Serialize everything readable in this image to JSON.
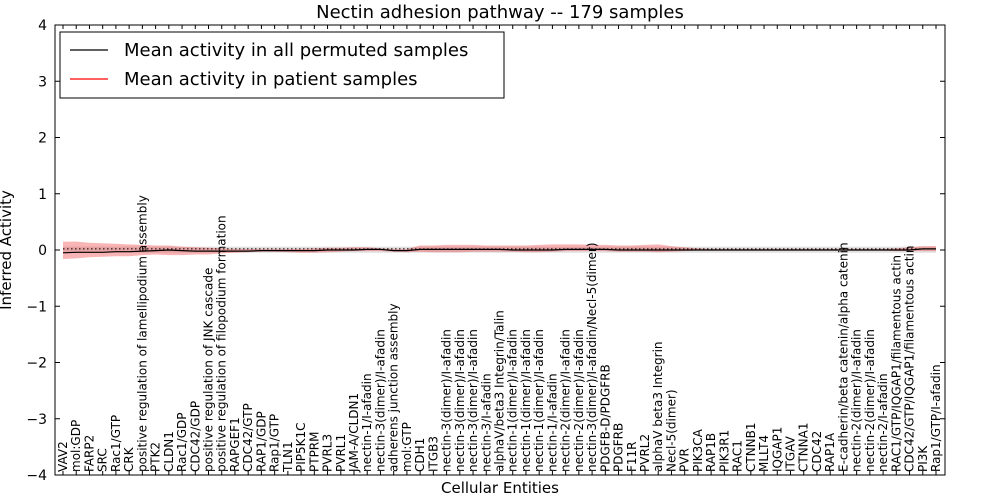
{
  "chart_data": {
    "type": "line",
    "title": "Nectin adhesion pathway -- 179 samples",
    "xlabel": "Cellular Entities",
    "ylabel": "Inferred Activity",
    "ylim": [
      -4,
      4
    ],
    "yticks": [
      "4",
      "3",
      "2",
      "1",
      "0",
      "−1",
      "−2",
      "−3",
      "−4"
    ],
    "ytick_values": [
      4,
      3,
      2,
      1,
      0,
      -1,
      -2,
      -3,
      -4
    ],
    "legend_position": "top-left",
    "categories": [
      "VAV2",
      "mol:GDP",
      "FARP2",
      "SRC",
      "Rac1/GTP",
      "CRK",
      "positive regulation of lamellipodium assembly",
      "PTK2",
      "CLDN1",
      "Rac1/GDP",
      "CDC42/GDP",
      "positive regulation of JNK cascade",
      "positive regulation of filopodium formation",
      "RAPGEF1",
      "CDC42/GTP",
      "RAP1/GDP",
      "Rap1/GTP",
      "TLN1",
      "PIP5K1C",
      "PTPRM",
      "PVRL3",
      "PVRL1",
      "JAM-A/CLDN1",
      "nectin-1/I-afadin",
      "nectin-3(dimer)/I-afadin",
      "adherens junction assembly",
      "mol:GTP",
      "CDH1",
      "ITGB3",
      "nectin-3(dimer)/I-afadin",
      "nectin-3(dimer)/I-afadin",
      "nectin-3(dimer)/I-afadin",
      "nectin-3/I-afadin",
      "alphaV/beta3 Integrin/Talin",
      "nectin-1(dimer)/I-afadin",
      "nectin-1(dimer)/I-afadin",
      "nectin-1(dimer)/I-afadin",
      "nectin-1/I-afadin",
      "nectin-2(dimer)/I-afadin",
      "nectin-2(dimer)/I-afadin",
      "nectin-3(dimer)/I-afadin/Necl-5(dimer)",
      "PDGFB-D/PDGFRB",
      "PDGFRB",
      "F11R",
      "PVRL2",
      "alphaV beta3 Integrin",
      "Necl-5(dimer)",
      "PVR",
      "PIK3CA",
      "RAP1B",
      "PIK3R1",
      "RAC1",
      "CTNNB1",
      "MLLT4",
      "IQGAP1",
      "ITGAV",
      "CTNNA1",
      "CDC42",
      "RAP1A",
      "E-cadherin/beta catenin/alpha catenin",
      "nectin-2(dimer)/I-afadin",
      "nectin-2(dimer)/I-afadin",
      "nectin-2/I-afadin",
      "RAC1/GTP/IQGAP1/filamentous actin",
      "CDC42/GTP/IQGAP1/filamentous actin",
      "PI3K",
      "Rap1/GTP/I-afadin"
    ],
    "series": [
      {
        "name": "Mean activity in all permuted samples",
        "color": "#000000",
        "style": "dotted",
        "values": [
          0.02,
          0.02,
          0.02,
          0.02,
          0.02,
          0.02,
          0.02,
          0.02,
          0.02,
          0.02,
          0.02,
          0.02,
          0.02,
          0.02,
          0.02,
          0.02,
          0.02,
          0.02,
          0.02,
          0.02,
          0.02,
          0.02,
          0.02,
          0.02,
          0.02,
          0.02,
          0.02,
          0.02,
          0.02,
          0.02,
          0.02,
          0.02,
          0.02,
          0.02,
          0.02,
          0.02,
          0.02,
          0.02,
          0.02,
          0.02,
          0.02,
          0.02,
          0.02,
          0.02,
          0.02,
          0.02,
          0.02,
          0.02,
          0.02,
          0.02,
          0.02,
          0.02,
          0.02,
          0.02,
          0.02,
          0.02,
          0.02,
          0.02,
          0.02,
          0.02,
          0.02,
          0.02,
          0.02,
          0.02,
          0.02,
          0.02,
          0.02
        ],
        "lower": [
          -0.05,
          -0.05,
          -0.05,
          -0.05,
          -0.05,
          -0.05,
          -0.05,
          -0.05,
          -0.05,
          -0.05,
          -0.05,
          -0.05,
          -0.05,
          -0.05,
          -0.05,
          -0.05,
          -0.05,
          -0.05,
          -0.05,
          -0.05,
          -0.05,
          -0.05,
          -0.05,
          -0.05,
          -0.05,
          -0.05,
          -0.05,
          -0.05,
          -0.05,
          -0.05,
          -0.05,
          -0.05,
          -0.05,
          -0.05,
          -0.05,
          -0.05,
          -0.05,
          -0.05,
          -0.05,
          -0.05,
          -0.05,
          -0.05,
          -0.05,
          -0.05,
          -0.05,
          -0.05,
          -0.05,
          -0.05,
          -0.05,
          -0.05,
          -0.05,
          -0.05,
          -0.05,
          -0.05,
          -0.05,
          -0.05,
          -0.05,
          -0.05,
          -0.05,
          -0.05,
          -0.05,
          -0.05,
          -0.05,
          -0.05,
          -0.05,
          -0.05,
          -0.05
        ],
        "upper": [
          0.06,
          0.06,
          0.06,
          0.06,
          0.06,
          0.06,
          0.06,
          0.06,
          0.06,
          0.06,
          0.06,
          0.06,
          0.06,
          0.06,
          0.06,
          0.06,
          0.06,
          0.06,
          0.06,
          0.06,
          0.06,
          0.06,
          0.06,
          0.06,
          0.06,
          0.06,
          0.06,
          0.06,
          0.06,
          0.06,
          0.06,
          0.06,
          0.06,
          0.06,
          0.06,
          0.06,
          0.06,
          0.06,
          0.06,
          0.06,
          0.06,
          0.06,
          0.06,
          0.06,
          0.06,
          0.06,
          0.06,
          0.06,
          0.06,
          0.06,
          0.06,
          0.06,
          0.06,
          0.06,
          0.06,
          0.06,
          0.06,
          0.06,
          0.06,
          0.06,
          0.06,
          0.06,
          0.06,
          0.06,
          0.06,
          0.06,
          0.06
        ]
      },
      {
        "name": "Mean activity in patient samples",
        "color": "#ff0000",
        "style": "solid",
        "values": [
          -0.05,
          -0.04,
          -0.04,
          -0.04,
          -0.03,
          -0.03,
          -0.02,
          -0.01,
          0.0,
          -0.01,
          -0.02,
          -0.02,
          -0.02,
          -0.02,
          -0.02,
          -0.01,
          -0.01,
          -0.01,
          -0.01,
          -0.01,
          0.0,
          0.0,
          0.0,
          0.01,
          0.01,
          -0.01,
          -0.01,
          0.01,
          0.01,
          0.01,
          0.01,
          0.01,
          0.01,
          0.01,
          0.0,
          0.0,
          0.0,
          0.0,
          0.01,
          0.01,
          0.01,
          0.01,
          0.0,
          0.0,
          0.0,
          0.0,
          0.0,
          0.0,
          0.0,
          0.0,
          0.0,
          0.0,
          0.0,
          0.0,
          0.0,
          0.0,
          0.0,
          0.0,
          0.0,
          0.0,
          0.0,
          0.0,
          0.0,
          0.0,
          0.0,
          0.02,
          0.02
        ],
        "lower": [
          -0.16,
          -0.15,
          -0.13,
          -0.12,
          -0.11,
          -0.11,
          -0.09,
          -0.08,
          -0.09,
          -0.09,
          -0.08,
          -0.08,
          -0.06,
          -0.05,
          -0.04,
          -0.03,
          -0.03,
          -0.04,
          -0.05,
          -0.05,
          -0.04,
          -0.03,
          -0.02,
          -0.02,
          -0.02,
          -0.03,
          -0.04,
          -0.03,
          -0.04,
          -0.04,
          -0.04,
          -0.03,
          -0.03,
          -0.03,
          -0.03,
          -0.04,
          -0.04,
          -0.03,
          -0.02,
          -0.02,
          -0.02,
          -0.02,
          -0.03,
          -0.03,
          -0.03,
          -0.04,
          -0.03,
          -0.02,
          -0.01,
          -0.01,
          -0.01,
          -0.01,
          -0.01,
          -0.01,
          -0.01,
          -0.01,
          -0.01,
          -0.01,
          -0.01,
          -0.01,
          -0.01,
          -0.01,
          -0.01,
          -0.02,
          -0.02,
          -0.02,
          -0.02
        ],
        "upper": [
          0.15,
          0.15,
          0.13,
          0.12,
          0.11,
          0.1,
          0.09,
          0.08,
          0.08,
          0.06,
          0.05,
          0.04,
          0.03,
          0.02,
          0.02,
          0.02,
          0.02,
          0.02,
          0.02,
          0.03,
          0.04,
          0.04,
          0.05,
          0.05,
          0.03,
          0.02,
          0.02,
          0.08,
          0.08,
          0.09,
          0.09,
          0.09,
          0.08,
          0.08,
          0.08,
          0.08,
          0.09,
          0.1,
          0.1,
          0.1,
          0.09,
          0.09,
          0.08,
          0.08,
          0.09,
          0.1,
          0.07,
          0.05,
          0.03,
          0.02,
          0.02,
          0.02,
          0.02,
          0.02,
          0.02,
          0.02,
          0.02,
          0.02,
          0.02,
          0.02,
          0.02,
          0.02,
          0.02,
          0.03,
          0.05,
          0.07,
          0.07
        ]
      }
    ]
  }
}
